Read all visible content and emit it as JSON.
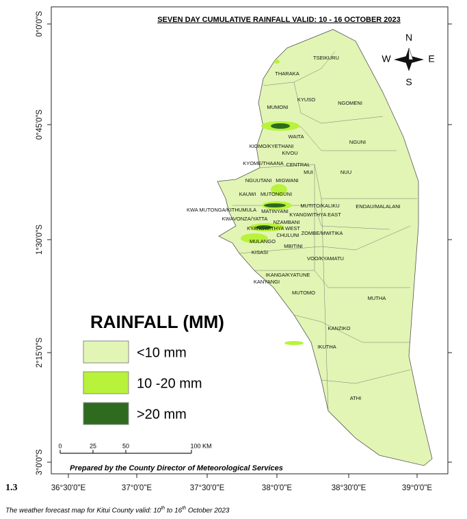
{
  "map": {
    "title": "SEVEN DAY CUMULATIVE RAINFALL VALID: 10 - 16 OCTOBER  2023",
    "lat_labels": [
      "0°0'0\"S",
      "0°45'0\"S",
      "1°30'0\"S",
      "2°15'0\"S",
      "3°0'0\"S"
    ],
    "lon_labels": [
      "36°30'0\"E",
      "37°0'0\"E",
      "37°30'0\"E",
      "38°0'0\"E",
      "38°30'0\"E",
      "39°0'0\"E"
    ],
    "compass": {
      "n": "N",
      "s": "S",
      "e": "E",
      "w": "W"
    },
    "wards": [
      "TSEIKURU",
      "THARAKA",
      "KYUSO",
      "NGOMENI",
      "MUMONI",
      "WAITA",
      "NGUNI",
      "KIOMO/KYETHANI",
      "KIVOU",
      "KYOME/THAANA",
      "CENTRAL",
      "MUI",
      "NUU",
      "NGUUTANI",
      "MIGWANI",
      "KAUWI",
      "MUTONGUNI",
      "MUTITO/KALIKU",
      "ENDAU/MALALANI",
      "KWA MUTONGA/KITHUMULA",
      "MATINYANI",
      "KYANGWITHYA EAST",
      "KWAVONZA/YATTA",
      "NZAMBANI",
      "KYANGWITHYA WEST",
      "ZOMBE/MWITIKA",
      "CHULUNI",
      "MULANGO",
      "MBITINI",
      "KISASI",
      "VOO/KYAMATU",
      "IKANGA/KYATUNE",
      "KANYANGI",
      "MUTOMO",
      "MUTHA",
      "KANZIKO",
      "IKUTHA",
      "ATHI"
    ],
    "legend": {
      "title": "RAINFALL (MM)",
      "items": [
        {
          "label": "<10 mm",
          "color": "#e2f5b4"
        },
        {
          "label": "10 -20 mm",
          "color": "#b8f23a"
        },
        {
          "label": ">20 mm",
          "color": "#2e6b1f"
        }
      ]
    },
    "scale_bar": [
      "0",
      "25",
      "50",
      "100 KM"
    ],
    "credit": "Prepared by the County Director of Meteorological Services"
  },
  "figure_number": "1.3",
  "caption": [
    "The weather forecast map for Kitui County valid: 10",
    "th",
    " to 16",
    "th",
    " October 2023"
  ]
}
